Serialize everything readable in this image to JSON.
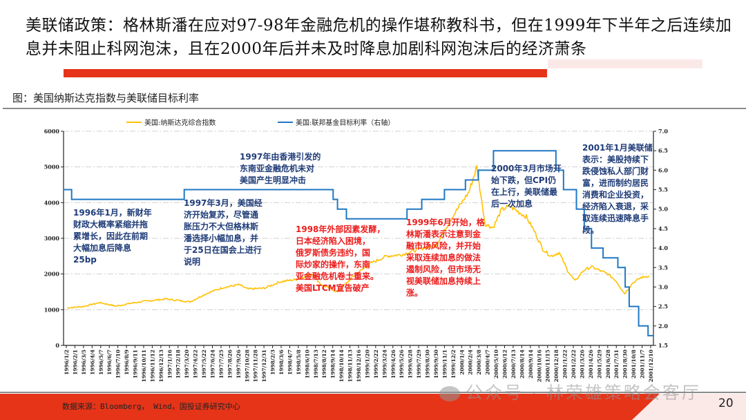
{
  "slide": {
    "title": "美联储政策：格林斯潘在应对97-98年金融危机的操作堪称教科书，但在1999年下半年之后连续加息并未阻止科网泡沫，且在2000年后并未及时降息加剧科网泡沫后的经济萧条",
    "figure_caption": "图：美国纳斯达克指数与美联储目标利率",
    "source": "数据来源：Bloomberg， Wind，国投证券研究中心",
    "page_number": "20",
    "watermark": "公众号 · 林荣雄策略会客厅",
    "colors": {
      "accent_red": "#e63419",
      "nasdaq": "#ffc000",
      "fed_rate": "#1f77c4",
      "annotation_blue": "#1f3c78",
      "annotation_red": "#ee1c1c"
    }
  },
  "legend": {
    "nasdaq": "美国:纳斯达克综合指数",
    "fed": "美国:联邦基金目标利率（右轴）"
  },
  "annotations": [
    {
      "id": "a1996",
      "color": "blue",
      "text": "1996年1月，新财年\n财政大概率紧缩并拖\n累增长，因此在前期\n大幅加息后降息\n25bp"
    },
    {
      "id": "a1997asia",
      "color": "blue",
      "text": "1997年由香港引发的\n东南亚金融危机未对\n美国产生明显冲击"
    },
    {
      "id": "a1997mar",
      "color": "blue",
      "text": "1997年3月，美国经\n济开始复苏，尽管通\n胀压力不大但格林斯\n潘选择小幅加息，并\n于25日在国会上进行\n说明"
    },
    {
      "id": "a1998",
      "color": "red",
      "text": "1998年外部因素发酵，\n日本经济陷入困境，\n俄罗斯债务违约，国\n际炒家的操作，东南\n亚金融危机卷土重来。\n美国LTCM宣告破产"
    },
    {
      "id": "a1999",
      "color": "red",
      "text": "1999年6月开始，格\n林斯潘表示注意到金\n融市场风险，并开始\n采取连续加息的做法\n遏制风险，但市场无\n视美联储加息持续上\n涨。"
    },
    {
      "id": "a2000",
      "color": "blue",
      "text": "2000年3月市场开\n始下跌，但CPI仍\n在上行，美联储最\n后一次加息"
    },
    {
      "id": "a2001",
      "color": "blue",
      "text": "2001年1月美联储\n表示：美股持续下\n跌侵蚀私人部门财\n富，进而制约居民\n消费和企业投资，\n经济陷入衰退，采\n取连续迅速降息手\n段。"
    }
  ],
  "chart_data": {
    "type": "line",
    "title": "美国纳斯达克指数与美联储目标利率",
    "xlabel": "",
    "ylabel_left": "",
    "ylabel_right": "",
    "ylim_left": [
      0,
      6000
    ],
    "ylim_right": [
      1.5,
      7.0
    ],
    "yticks_left": [
      "0",
      "1000",
      "2000",
      "3000",
      "4000",
      "5000",
      "6000"
    ],
    "yticks_right": [
      "1.5",
      "2.0",
      "2.5",
      "3.0",
      "3.5",
      "4.0",
      "4.5",
      "5.0",
      "5.5",
      "6.0",
      "6.5",
      "7.0"
    ],
    "grid": "horizontal dash-dot",
    "legend_position": "top",
    "x_tick_labels": [
      "1996/1/2",
      "1996/2/1",
      "1996/3/5",
      "1996/4/4",
      "1996/5/7",
      "1996/6/7",
      "1996/7/10",
      "1996/8/9",
      "1996/9/11",
      "1996/10/11",
      "1996/11/12",
      "1996/12/13",
      "1997/1/16",
      "1997/2/18",
      "1997/3/20",
      "1997/4/22",
      "1997/5/22",
      "1997/6/24",
      "1997/7/25",
      "1997/8/26",
      "1997/9/26",
      "1997/10/28",
      "1997/11/28",
      "1997/12/31",
      "1998/2/3",
      "1998/3/6",
      "1998/4/7",
      "1998/5/8",
      "1998/6/10",
      "1998/7/13",
      "1998/8/12",
      "1998/9/14",
      "1998/10/14",
      "1998/11/13",
      "1998/12/16",
      "1999/1/20",
      "1999/2/22",
      "1999/3/24",
      "1999/4/26",
      "1999/5/26",
      "1999/6/28",
      "1999/7/29",
      "1999/8/30",
      "1999/9/30",
      "1999/11/1",
      "1999/12/2",
      "2000/1/4",
      "2000/2/4",
      "2000/3/8",
      "2000/4/7",
      "2000/5/10",
      "2000/6/12",
      "2000/7/13",
      "2000/8/14",
      "2000/9/14",
      "2000/10/16",
      "2000/11/15",
      "2000/12/18",
      "2001/1/22",
      "2001/2/22",
      "2001/3/26",
      "2001/4/26",
      "2001/5/29",
      "2001/6/28",
      "2001/7/31",
      "2001/8/30",
      "2001/10/8",
      "2001/11/7",
      "2001/12/10"
    ],
    "series": [
      {
        "name": "美国:纳斯达克综合指数",
        "axis": "left",
        "x": [
          "1996/1",
          "1996/3",
          "1996/5",
          "1996/7",
          "1996/9",
          "1996/11",
          "1997/1",
          "1997/3",
          "1997/4",
          "1997/6",
          "1997/8",
          "1997/10",
          "1997/11",
          "1998/1",
          "1998/3",
          "1998/5",
          "1998/7",
          "1998/8",
          "1998/10",
          "1998/12",
          "1999/2",
          "1999/4",
          "1999/6",
          "1999/8",
          "1999/10",
          "1999/12",
          "2000/2",
          "2000/3",
          "2000/4",
          "2000/5",
          "2000/6",
          "2000/7",
          "2000/9",
          "2000/10",
          "2000/11",
          "2000/12",
          "2001/1",
          "2001/2",
          "2001/3",
          "2001/4",
          "2001/5",
          "2001/7",
          "2001/8",
          "2001/9",
          "2001/10",
          "2001/11",
          "2001/12"
        ],
        "values": [
          1050,
          1090,
          1200,
          1100,
          1190,
          1250,
          1300,
          1250,
          1220,
          1450,
          1620,
          1700,
          1580,
          1600,
          1780,
          1850,
          2000,
          1700,
          1500,
          1950,
          2300,
          2500,
          2550,
          2700,
          2800,
          3600,
          4300,
          5000,
          3400,
          3300,
          3800,
          3900,
          3600,
          3200,
          2700,
          2500,
          2600,
          2100,
          1800,
          2100,
          2200,
          2000,
          1800,
          1450,
          1750,
          1900,
          1950
        ]
      },
      {
        "name": "美国:联邦基金目标利率（右轴）",
        "axis": "right",
        "steps": [
          {
            "from": "1996/1/2",
            "value": 5.5
          },
          {
            "from": "1996/2/1",
            "value": 5.25
          },
          {
            "from": "1997/3/25",
            "value": 5.5
          },
          {
            "from": "1998/9/29",
            "value": 5.25
          },
          {
            "from": "1998/10/15",
            "value": 5.0
          },
          {
            "from": "1998/11/17",
            "value": 4.75
          },
          {
            "from": "1999/6/30",
            "value": 5.0
          },
          {
            "from": "1999/8/24",
            "value": 5.25
          },
          {
            "from": "1999/11/16",
            "value": 5.5
          },
          {
            "from": "2000/2/2",
            "value": 5.75
          },
          {
            "from": "2000/3/21",
            "value": 6.0
          },
          {
            "from": "2000/5/16",
            "value": 6.5
          },
          {
            "from": "2001/1/3",
            "value": 6.0
          },
          {
            "from": "2001/1/31",
            "value": 5.5
          },
          {
            "from": "2001/3/20",
            "value": 5.0
          },
          {
            "from": "2001/4/18",
            "value": 4.5
          },
          {
            "from": "2001/5/15",
            "value": 4.0
          },
          {
            "from": "2001/6/27",
            "value": 3.75
          },
          {
            "from": "2001/8/21",
            "value": 3.5
          },
          {
            "from": "2001/9/17",
            "value": 3.0
          },
          {
            "from": "2001/10/2",
            "value": 2.5
          },
          {
            "from": "2001/11/6",
            "value": 2.0
          },
          {
            "from": "2001/12/11",
            "value": 1.75
          }
        ]
      }
    ]
  }
}
